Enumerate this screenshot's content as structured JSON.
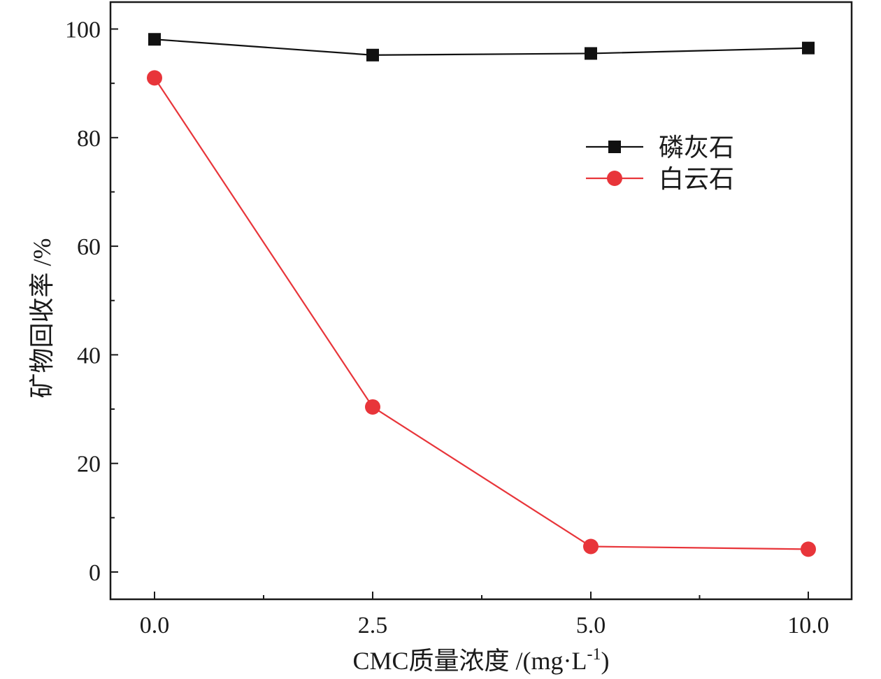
{
  "chart_data": {
    "type": "line",
    "title": "",
    "xlabel": "CMC质量浓度 /(mg·L",
    "xlabel_sup": "-1",
    "xlabel_tail": ")",
    "ylabel": "矿物回收率 /%",
    "categories": [
      "0.0",
      "2.5",
      "5.0",
      "10.0"
    ],
    "ylim": [
      -5,
      105
    ],
    "yticks": [
      0,
      20,
      40,
      60,
      80,
      100
    ],
    "yticks_minor": [
      10,
      30,
      50,
      70,
      90
    ],
    "grid": false,
    "legend_position": "upper-right",
    "series": [
      {
        "name": "磷灰石",
        "marker": "square",
        "color": "#111111",
        "values": [
          98.1,
          95.2,
          95.5,
          96.5
        ]
      },
      {
        "name": "白云石",
        "marker": "circle",
        "color": "#e8353a",
        "values": [
          91.0,
          30.4,
          4.7,
          4.2
        ]
      }
    ]
  }
}
